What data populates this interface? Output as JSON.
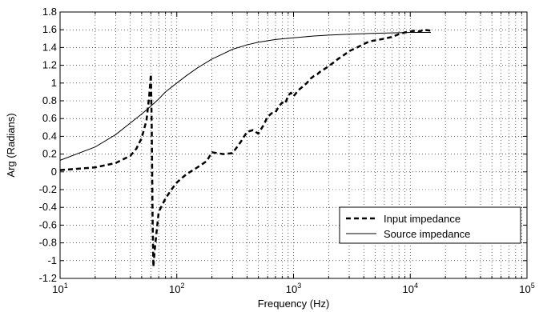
{
  "chart_data": {
    "type": "line",
    "title": "",
    "xlabel": "Frequency (Hz)",
    "ylabel": "Arg (Radians)",
    "xscale": "log",
    "xlim": [
      10,
      100000
    ],
    "ylim": [
      -1.2,
      1.8
    ],
    "x_ticks": [
      {
        "base": "10",
        "exp": "1"
      },
      {
        "base": "10",
        "exp": "2"
      },
      {
        "base": "10",
        "exp": "3"
      },
      {
        "base": "10",
        "exp": "4"
      },
      {
        "base": "10",
        "exp": "5"
      }
    ],
    "y_ticks": [
      "1.8",
      "1.6",
      "1.4",
      "1.2",
      "1",
      "0.8",
      "0.6",
      "0.4",
      "0.2",
      "0",
      "-0.2",
      "-0.4",
      "-0.6",
      "-0.8",
      "-1",
      "-1.2"
    ],
    "grid": true,
    "grid_style": "dotted",
    "legend_position": "bottom-right",
    "series": [
      {
        "name": "Input impedance",
        "style": "dashed",
        "color": "#000000",
        "x": [
          10,
          20,
          30,
          40,
          45,
          50,
          55,
          58,
          60,
          61,
          62,
          63,
          65,
          70,
          80,
          90,
          100,
          120,
          150,
          180,
          200,
          250,
          300,
          350,
          400,
          450,
          500,
          550,
          600,
          650,
          700,
          750,
          800,
          850,
          900,
          950,
          1000,
          1100,
          1200,
          1300,
          1400,
          1500,
          1600,
          1700,
          1800,
          1900,
          2000,
          2200,
          2400,
          2600,
          2800,
          3000,
          3500,
          4000,
          4500,
          5000,
          6000,
          7000,
          8000,
          9000,
          10000,
          11000,
          12000,
          13000,
          15000
        ],
        "y": [
          0.02,
          0.05,
          0.1,
          0.18,
          0.26,
          0.38,
          0.58,
          0.85,
          1.1,
          0.5,
          -0.5,
          -1.07,
          -0.85,
          -0.45,
          -0.3,
          -0.2,
          -0.12,
          -0.03,
          0.05,
          0.12,
          0.22,
          0.2,
          0.21,
          0.33,
          0.45,
          0.47,
          0.43,
          0.52,
          0.62,
          0.66,
          0.67,
          0.74,
          0.78,
          0.77,
          0.86,
          0.89,
          0.85,
          0.92,
          0.96,
          1.0,
          1.05,
          1.08,
          1.1,
          1.13,
          1.15,
          1.17,
          1.19,
          1.23,
          1.27,
          1.3,
          1.33,
          1.36,
          1.4,
          1.44,
          1.47,
          1.48,
          1.5,
          1.52,
          1.55,
          1.57,
          1.58,
          1.59,
          1.58,
          1.6,
          1.59
        ]
      },
      {
        "name": "Source impedance",
        "style": "solid",
        "color": "#000000",
        "x": [
          10,
          20,
          30,
          40,
          50,
          60,
          70,
          80,
          100,
          120,
          150,
          200,
          250,
          300,
          400,
          500,
          700,
          1000,
          1500,
          2000,
          3000,
          5000,
          7000,
          10000,
          15000
        ],
        "y": [
          0.13,
          0.28,
          0.42,
          0.55,
          0.65,
          0.74,
          0.82,
          0.9,
          1.0,
          1.08,
          1.17,
          1.27,
          1.33,
          1.38,
          1.43,
          1.46,
          1.49,
          1.51,
          1.53,
          1.54,
          1.55,
          1.56,
          1.565,
          1.57,
          1.57
        ]
      }
    ]
  }
}
